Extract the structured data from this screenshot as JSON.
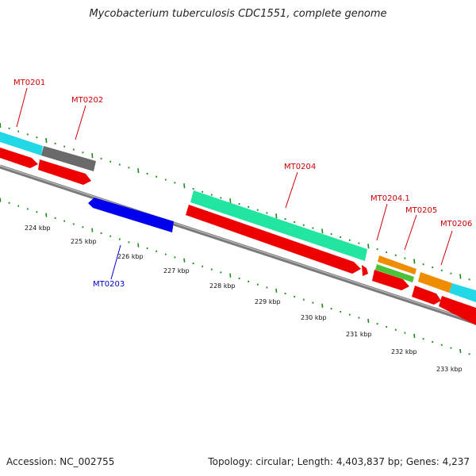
{
  "title": "Mycobacterium tuberculosis CDC1551, complete genome",
  "footer": {
    "accession": "Accession: NC_002755",
    "stats": "Topology: circular; Length: 4,403,837 bp; Genes: 4,237"
  },
  "colors": {
    "backbone": "#7a7a7a",
    "tick": "#1a8a1a",
    "label_forward": "#cc0000",
    "label_reverse": "#0000cc",
    "cds_red": "#ee0000",
    "blue": "#0000ee",
    "cyan": "#22d8e6",
    "gray": "#6a6a6a",
    "seagreen": "#22e6a0",
    "orange": "#f08c00",
    "green": "#4cc23a"
  },
  "scale_labels": [
    "224 kbp",
    "225 kbp",
    "226 kbp",
    "227 kbp",
    "228 kbp",
    "229 kbp",
    "230 kbp",
    "231 kbp",
    "232 kbp",
    "233 kbp"
  ],
  "genes": [
    {
      "label": "MT0201",
      "strand": "forward",
      "color": "cyan"
    },
    {
      "label": "MT0202",
      "strand": "forward",
      "color": "gray"
    },
    {
      "label": "MT0203",
      "strand": "reverse",
      "color": "blue"
    },
    {
      "label": "MT0204",
      "strand": "forward",
      "color": "seagreen"
    },
    {
      "label": "MT0204.1",
      "strand": "forward",
      "color": "green"
    },
    {
      "label": "MT0205",
      "strand": "forward",
      "color": "orange"
    },
    {
      "label": "MT0206",
      "strand": "forward",
      "color": "orange"
    }
  ]
}
